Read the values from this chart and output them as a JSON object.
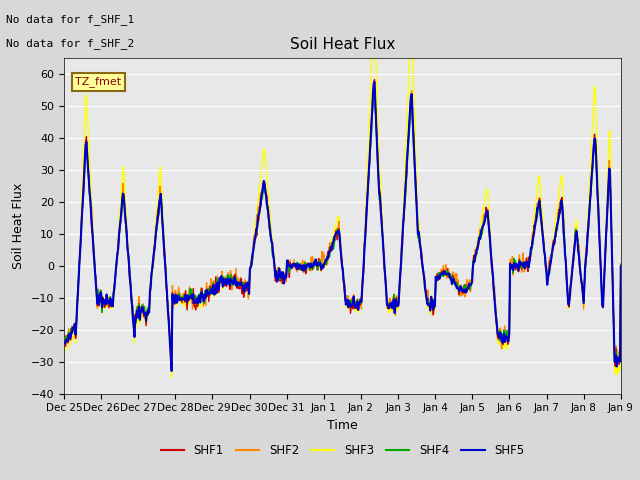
{
  "title": "Soil Heat Flux",
  "ylabel": "Soil Heat Flux",
  "xlabel": "Time",
  "ylim": [
    -40,
    65
  ],
  "yticks": [
    -40,
    -30,
    -20,
    -10,
    0,
    10,
    20,
    30,
    40,
    50,
    60
  ],
  "bg_color": "#e8e8e8",
  "plot_bg": "#e8e8e8",
  "annotation_text1": "No data for f_SHF_1",
  "annotation_text2": "No data for f_SHF_2",
  "legend_labels": [
    "SHF1",
    "SHF2",
    "SHF3",
    "SHF4",
    "SHF5"
  ],
  "colors": {
    "SHF1": "#cc0000",
    "SHF2": "#ff8800",
    "SHF3": "#ffff00",
    "SHF4": "#00aa00",
    "SHF5": "#0000cc"
  },
  "tz_label": "TZ_fmet",
  "x_tick_labels": [
    "Dec 25",
    "Dec 26",
    "Dec 27",
    "Dec 28",
    "Dec 29",
    "Dec 30",
    "Dec 31",
    "Jan 1",
    "Jan 2",
    "Jan 3",
    "Jan 4",
    "Jan 5",
    "Jan 6",
    "Jan 7",
    "Jan 8",
    "Jan 9"
  ]
}
